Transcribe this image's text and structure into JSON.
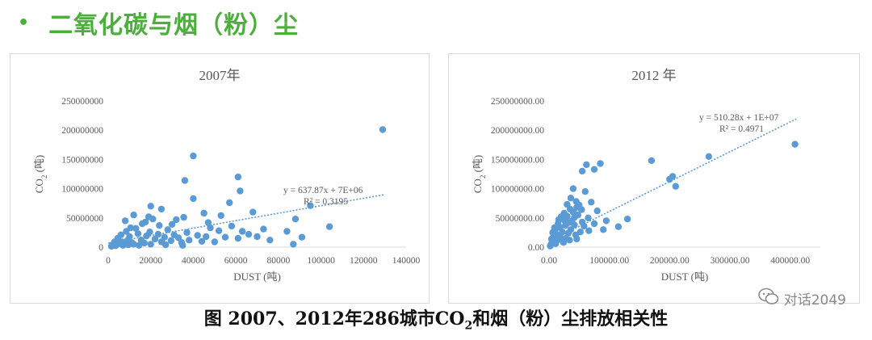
{
  "heading": {
    "bullet": "•",
    "title": "二氧化碳与烟（粉）尘"
  },
  "caption": {
    "prefix": "图 2007、2012年286城市CO",
    "sub": "2",
    "suffix": "和烟（粉）尘排放相关性"
  },
  "watermark": {
    "text": "对话2049",
    "icon": "wechat-icon"
  },
  "colors": {
    "heading": "#4caf3c",
    "points": "#5b9bd5",
    "trendline": "#5b9bd5",
    "axis": "#d9d9d9",
    "text": "#595959"
  },
  "chart_data": [
    {
      "type": "scatter",
      "title": "2007年",
      "xlabel": "DUST (吨)",
      "ylabel_main": "CO",
      "ylabel_sub": "2",
      "ylabel_tail": " (吨)",
      "xlim": [
        0,
        140000
      ],
      "ylim": [
        0,
        250000000
      ],
      "xticks": [
        0,
        20000,
        40000,
        60000,
        80000,
        100000,
        120000,
        140000
      ],
      "xtick_labels": [
        "0",
        "20000",
        "40000",
        "60000",
        "80000",
        "100000",
        "120000",
        "140000"
      ],
      "yticks": [
        0,
        50000000,
        100000000,
        150000000,
        200000000,
        250000000
      ],
      "ytick_labels": [
        "0",
        "50000000",
        "100000000",
        "150000000",
        "200000000",
        "250000000"
      ],
      "grid": false,
      "trendline": {
        "slope": 637.87,
        "intercept": 7000000,
        "x_range": [
          0,
          130000
        ],
        "equation": "y = 637.87x + 7E+06",
        "r2": "R² = 0.3195"
      },
      "points": [
        [
          129000,
          201000000
        ],
        [
          40000,
          156000000
        ],
        [
          36000,
          114000000
        ],
        [
          61000,
          120000000
        ],
        [
          62000,
          96000000
        ],
        [
          40000,
          83000000
        ],
        [
          57000,
          76000000
        ],
        [
          95000,
          71000000
        ],
        [
          68000,
          60000000
        ],
        [
          20000,
          70000000
        ],
        [
          25000,
          65000000
        ],
        [
          45000,
          58000000
        ],
        [
          53000,
          54000000
        ],
        [
          88000,
          48000000
        ],
        [
          104000,
          35000000
        ],
        [
          73000,
          31000000
        ],
        [
          84000,
          27000000
        ],
        [
          91000,
          17000000
        ],
        [
          87000,
          5000000
        ],
        [
          66000,
          22000000
        ],
        [
          61000,
          15000000
        ],
        [
          76000,
          12000000
        ],
        [
          12000,
          55000000
        ],
        [
          8000,
          45000000
        ],
        [
          16000,
          40000000
        ],
        [
          21000,
          48000000
        ],
        [
          32000,
          47000000
        ],
        [
          37000,
          25000000
        ],
        [
          42000,
          20000000
        ],
        [
          48000,
          33000000
        ],
        [
          52000,
          28000000
        ],
        [
          58000,
          36000000
        ],
        [
          3000,
          9000000
        ],
        [
          4500,
          15000000
        ],
        [
          6000,
          21000000
        ],
        [
          8500,
          27000000
        ],
        [
          10000,
          18000000
        ],
        [
          11000,
          8000000
        ],
        [
          13000,
          32000000
        ],
        [
          14000,
          23000000
        ],
        [
          15500,
          12000000
        ],
        [
          17000,
          7000000
        ],
        [
          18000,
          19000000
        ],
        [
          19500,
          26000000
        ],
        [
          22000,
          14000000
        ],
        [
          23500,
          22000000
        ],
        [
          25000,
          9000000
        ],
        [
          26500,
          17000000
        ],
        [
          28000,
          30000000
        ],
        [
          29500,
          11000000
        ],
        [
          31000,
          21000000
        ],
        [
          33000,
          16000000
        ],
        [
          34500,
          8000000
        ],
        [
          38000,
          12000000
        ],
        [
          44000,
          10000000
        ],
        [
          46000,
          18000000
        ],
        [
          50000,
          9000000
        ],
        [
          55000,
          17000000
        ],
        [
          63000,
          27000000
        ],
        [
          70000,
          18000000
        ],
        [
          2000,
          4000000
        ],
        [
          5000,
          6000000
        ],
        [
          7000,
          3000000
        ],
        [
          9000,
          11000000
        ],
        [
          12000,
          5000000
        ],
        [
          1500,
          1500000
        ],
        [
          3500,
          2500000
        ],
        [
          6500,
          9000000
        ],
        [
          9500,
          4000000
        ],
        [
          14500,
          3000000
        ],
        [
          20000,
          5000000
        ],
        [
          27000,
          4000000
        ],
        [
          35000,
          3000000
        ],
        [
          24000,
          37000000
        ],
        [
          30000,
          39000000
        ],
        [
          17500,
          43000000
        ],
        [
          10500,
          33000000
        ],
        [
          19000,
          52000000
        ],
        [
          35500,
          51000000
        ],
        [
          47000,
          42000000
        ]
      ]
    },
    {
      "type": "scatter",
      "title": "2012 年",
      "xlabel": "DUST (吨)",
      "ylabel_main": "CO",
      "ylabel_sub": "2",
      "ylabel_tail": " (吨)",
      "xlim": [
        0,
        450000
      ],
      "ylim": [
        0,
        250000000
      ],
      "xticks": [
        0,
        100000,
        200000,
        300000,
        400000
      ],
      "xtick_labels": [
        "0.00",
        "100000.00",
        "200000.00",
        "300000.00",
        "400000.00"
      ],
      "yticks": [
        0,
        50000000,
        100000000,
        150000000,
        200000000,
        250000000
      ],
      "ytick_labels": [
        "0.00",
        "50000000.00",
        "100000000.00",
        "150000000.00",
        "200000000.00",
        "250000000.00"
      ],
      "grid": false,
      "trendline": {
        "slope": 510.28,
        "intercept": 10000000,
        "x_range": [
          0,
          410000
        ],
        "equation": "y = 510.28x + 1E+07",
        "r2": "R² = 0.4971"
      },
      "points": [
        [
          408000,
          176000000
        ],
        [
          265000,
          155000000
        ],
        [
          170000,
          148000000
        ],
        [
          205000,
          121000000
        ],
        [
          200000,
          116000000
        ],
        [
          210000,
          104000000
        ],
        [
          62000,
          141000000
        ],
        [
          75000,
          133000000
        ],
        [
          85000,
          143000000
        ],
        [
          55000,
          130000000
        ],
        [
          40000,
          100000000
        ],
        [
          60000,
          95000000
        ],
        [
          45000,
          78000000
        ],
        [
          50000,
          72000000
        ],
        [
          70000,
          77000000
        ],
        [
          80000,
          62000000
        ],
        [
          30000,
          73000000
        ],
        [
          35000,
          65000000
        ],
        [
          25000,
          58000000
        ],
        [
          20000,
          52000000
        ],
        [
          38000,
          45000000
        ],
        [
          42000,
          38000000
        ],
        [
          48000,
          55000000
        ],
        [
          55000,
          43000000
        ],
        [
          65000,
          50000000
        ],
        [
          130000,
          48000000
        ],
        [
          115000,
          35000000
        ],
        [
          90000,
          30000000
        ],
        [
          15000,
          40000000
        ],
        [
          10000,
          28000000
        ],
        [
          8000,
          18000000
        ],
        [
          5000,
          10000000
        ],
        [
          3000,
          4000000
        ],
        [
          12000,
          22000000
        ],
        [
          18000,
          34000000
        ],
        [
          22000,
          26000000
        ],
        [
          28000,
          15000000
        ],
        [
          32000,
          24000000
        ],
        [
          36000,
          30000000
        ],
        [
          44000,
          21000000
        ],
        [
          52000,
          26000000
        ],
        [
          58000,
          36000000
        ],
        [
          66000,
          28000000
        ],
        [
          75000,
          40000000
        ],
        [
          95000,
          45000000
        ],
        [
          14000,
          12000000
        ],
        [
          24000,
          8000000
        ],
        [
          34000,
          12000000
        ],
        [
          46000,
          14000000
        ],
        [
          6000,
          25000000
        ],
        [
          9000,
          33000000
        ],
        [
          16000,
          47000000
        ],
        [
          26000,
          45000000
        ],
        [
          30000,
          53000000
        ],
        [
          40000,
          60000000
        ],
        [
          54000,
          64000000
        ],
        [
          46000,
          68000000
        ],
        [
          36000,
          84000000
        ],
        [
          2000,
          2000000
        ],
        [
          4000,
          14000000
        ],
        [
          11000,
          6000000
        ],
        [
          19000,
          17000000
        ],
        [
          27000,
          37000000
        ],
        [
          33000,
          42000000
        ],
        [
          42000,
          51000000
        ]
      ]
    }
  ]
}
